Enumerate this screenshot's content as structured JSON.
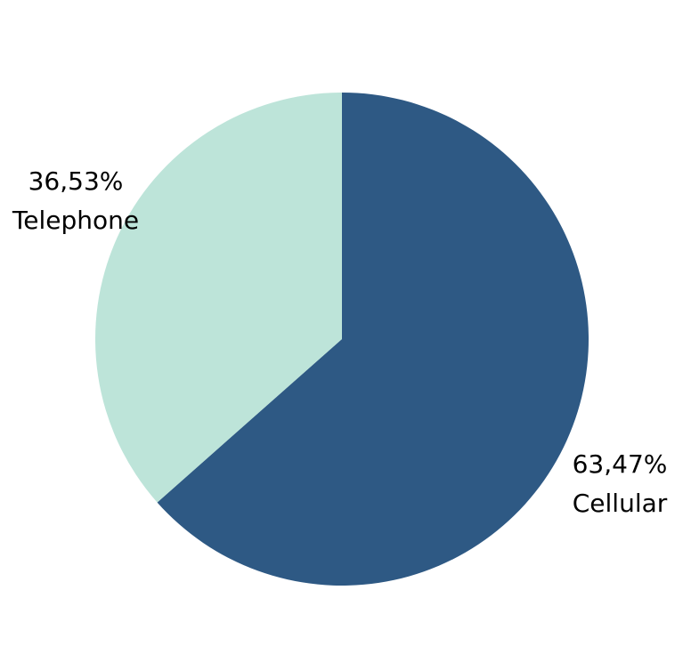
{
  "chart_data": {
    "type": "pie",
    "start_angle_deg": 0,
    "direction": "clockwise",
    "slices": [
      {
        "label": "Cellular",
        "value": 63.47,
        "value_label": "63,47%",
        "color": "#2e5984"
      },
      {
        "label": "Telephone",
        "value": 36.53,
        "value_label": "36,53%",
        "color": "#bde4d9"
      }
    ],
    "legend": "none"
  }
}
